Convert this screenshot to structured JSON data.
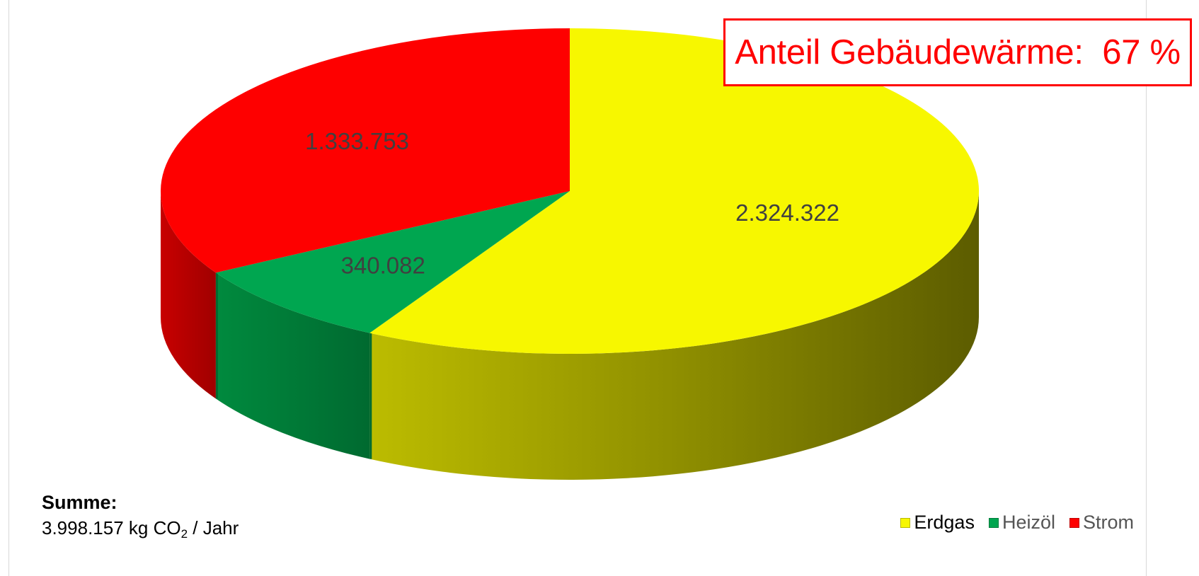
{
  "chart_data": {
    "type": "pie",
    "categories": [
      "Erdgas",
      "Heizöl",
      "Strom"
    ],
    "values": [
      2324322,
      340082,
      1333753
    ],
    "labels": [
      "2.324.322",
      "340.082",
      "1.333.753"
    ],
    "colors": [
      "#f7f700",
      "#00a650",
      "#fe0000"
    ],
    "legend_position": "bottom-right"
  },
  "callout": {
    "text": "Anteil Gebäudewärme:  67 %",
    "color": "#ff0000"
  },
  "summary": {
    "title": "Summe:",
    "value": "3.998.157 kg CO",
    "subscript": "2",
    "unit": " / Jahr"
  }
}
